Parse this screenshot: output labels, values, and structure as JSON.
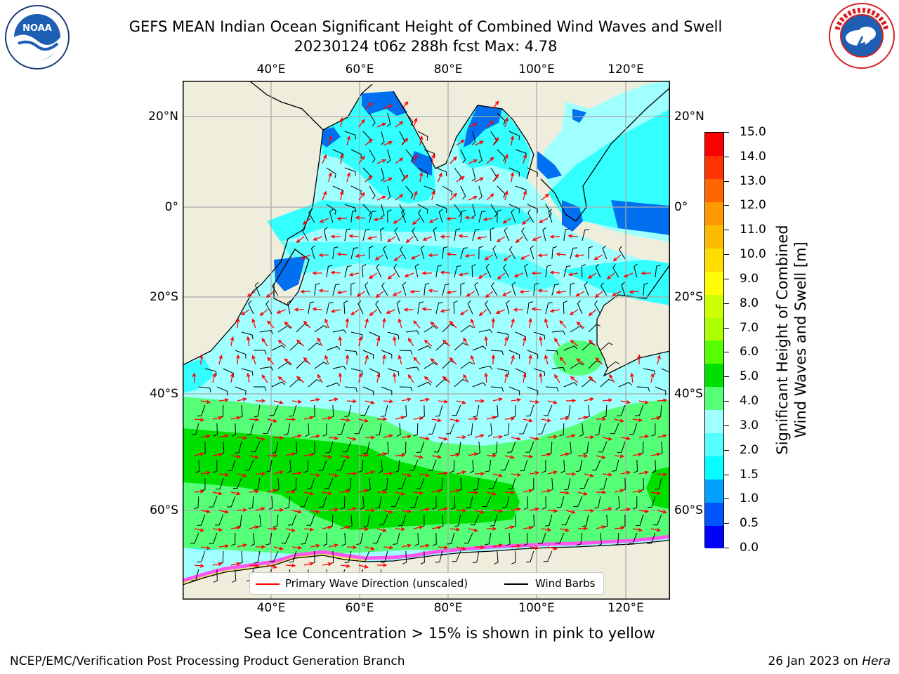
{
  "header": {
    "title_line1": "GEFS MEAN Indian Ocean Significant Height of Combined Wind Waves and Swell",
    "title_line2": "20230124 t06z 288h fcst   Max: 4.78"
  },
  "logos": {
    "left": {
      "name": "NOAA",
      "ring_text": "NATIONAL OCEANIC AND ATMOSPHERIC ADMINISTRATION · U.S. DEPARTMENT OF COMMERCE"
    },
    "right": {
      "name": "NATIONAL WEATHER SERVICE"
    }
  },
  "map": {
    "lon_labels": [
      "40°E",
      "60°E",
      "80°E",
      "100°E",
      "120°E"
    ],
    "lat_labels": [
      "20°N",
      "0°",
      "20°S",
      "40°S",
      "60°S"
    ],
    "colors": {
      "land": "#efeedd",
      "ocean_1_5": "#33ffff",
      "ocean_2_0": "#a0ffff",
      "swell_3_0": "#55ff77",
      "swell_4_0": "#00e000",
      "shallow_1_0": "#0070f0",
      "arrow": "#ff0000",
      "barb": "#000000",
      "ice": "#ff55ee"
    }
  },
  "legend": {
    "primary_wave": "Primary Wave Direction (unscaled)",
    "wind_barbs": "Wind Barbs"
  },
  "colorbar": {
    "label_line1": "Significant Height of Combined",
    "label_line2": "Wind Waves and Swell [m]",
    "ticks": [
      "0.0",
      "0.5",
      "1.0",
      "1.5",
      "2.0",
      "3.0",
      "4.0",
      "5.0",
      "6.0",
      "7.0",
      "8.0",
      "9.0",
      "10.0",
      "11.0",
      "12.0",
      "13.0",
      "14.0",
      "15.0"
    ],
    "colors": [
      "#0000ff",
      "#0055ff",
      "#00a0ff",
      "#00ffff",
      "#55ffff",
      "#a0ffff",
      "#55ff77",
      "#00e000",
      "#55ff00",
      "#aaff00",
      "#ccff00",
      "#ffff00",
      "#ffdd00",
      "#ffbb00",
      "#ff9900",
      "#ff6600",
      "#ff3300",
      "#ff0000"
    ]
  },
  "footer": {
    "ice_note": "Sea Ice Concentration > 15% is shown in pink to yellow",
    "branch": "NCEP/EMC/Verification Post Processing Product Generation Branch",
    "date": "26 Jan 2023 on ",
    "host": "Hera"
  }
}
